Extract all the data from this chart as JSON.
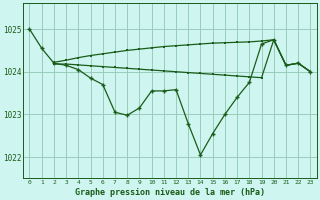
{
  "title": "Graphe pression niveau de la mer (hPa)",
  "bg_color": "#cef5ef",
  "grid_color": "#99ccbb",
  "line_color": "#1a5c1a",
  "x_ticks": [
    0,
    1,
    2,
    3,
    4,
    5,
    6,
    7,
    8,
    9,
    10,
    11,
    12,
    13,
    14,
    15,
    16,
    17,
    18,
    19,
    20,
    21,
    22,
    23
  ],
  "y_ticks": [
    1022,
    1023,
    1024,
    1025
  ],
  "ylim": [
    1021.5,
    1025.6
  ],
  "xlim": [
    -0.5,
    23.5
  ],
  "series_main": [
    1025.0,
    1024.55,
    1024.2,
    1024.15,
    1024.05,
    1023.85,
    1023.7,
    1023.05,
    1022.98,
    1023.15,
    1023.55,
    1023.55,
    1023.58,
    1022.78,
    1022.05,
    1022.55,
    1023.0,
    1023.4,
    1023.75,
    1024.65,
    1024.75,
    1024.15,
    1024.2,
    1024.0
  ],
  "series_upper": [
    null,
    null,
    1024.22,
    1024.27,
    1024.33,
    1024.38,
    1024.42,
    1024.46,
    1024.5,
    1024.53,
    1024.56,
    1024.59,
    1024.61,
    1024.63,
    1024.65,
    1024.67,
    1024.68,
    1024.69,
    1024.7,
    1024.72,
    1024.75,
    1024.15,
    1024.2,
    1024.0
  ],
  "series_lower": [
    null,
    null,
    1024.18,
    1024.18,
    1024.16,
    1024.14,
    1024.12,
    1024.1,
    1024.08,
    1024.06,
    1024.04,
    1024.02,
    1024.0,
    1023.98,
    1023.96,
    1023.94,
    1023.92,
    1023.9,
    1023.88,
    1023.86,
    1024.75,
    1024.15,
    1024.2,
    1024.0
  ]
}
